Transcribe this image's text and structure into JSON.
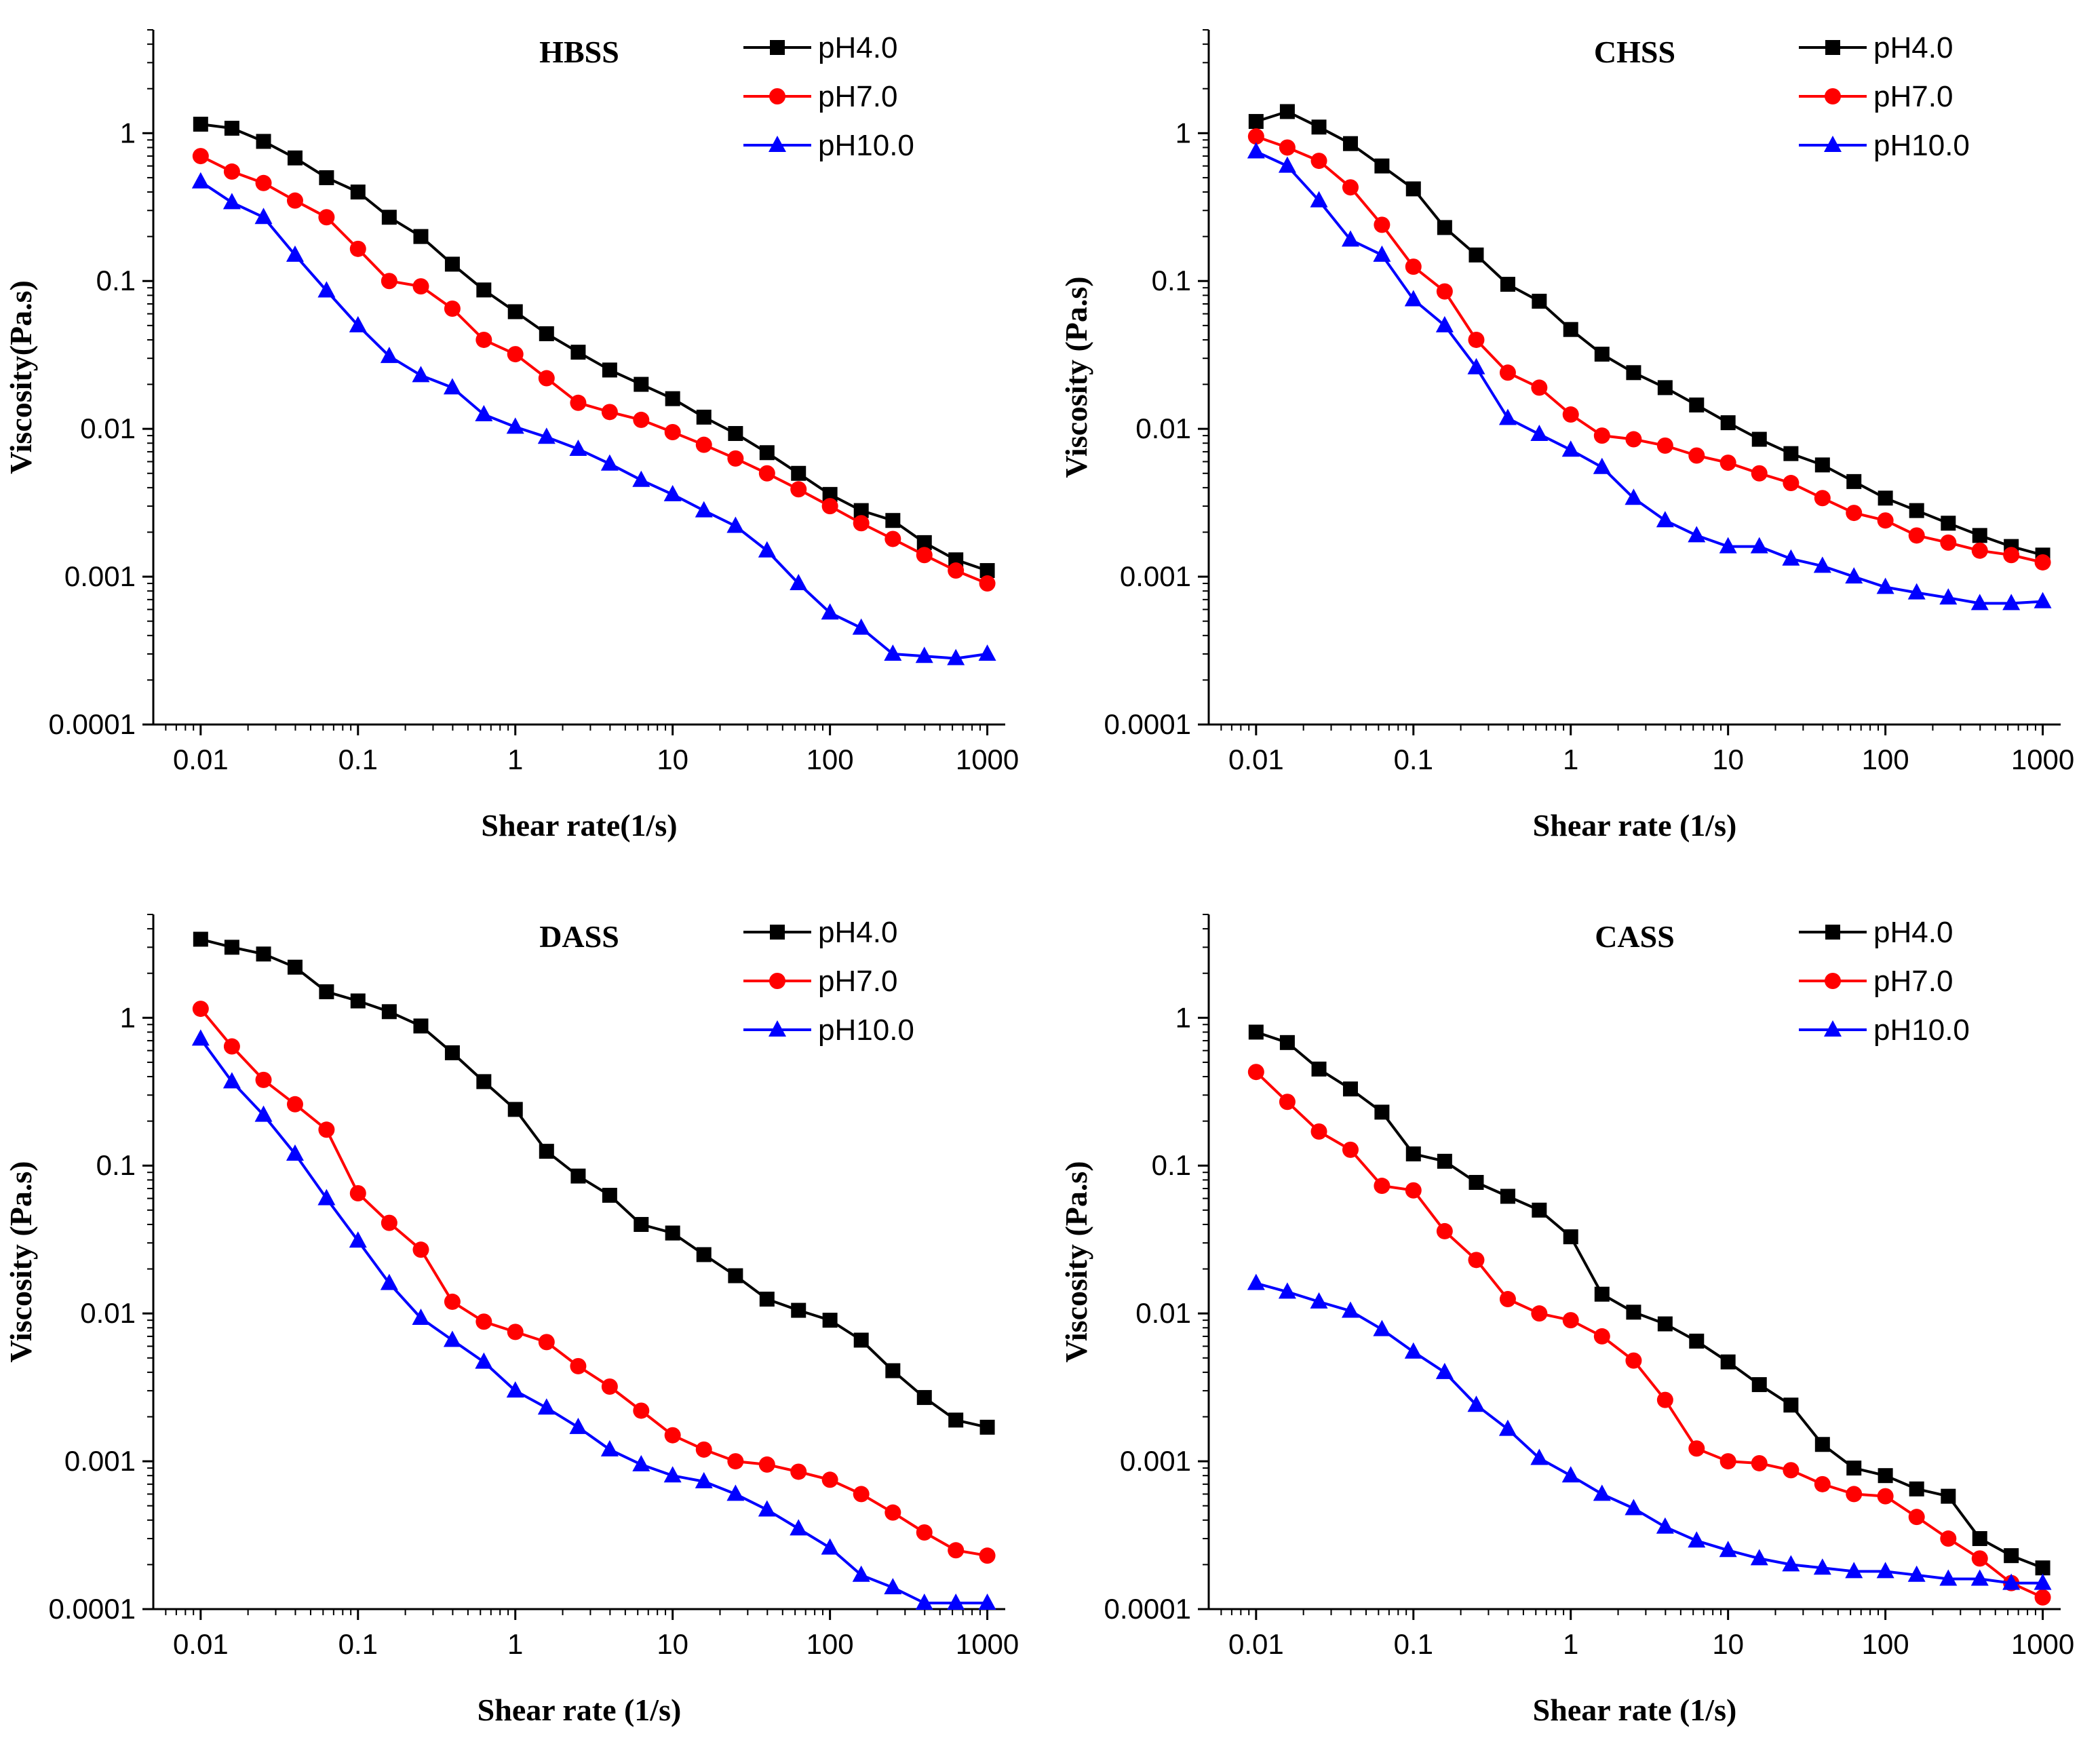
{
  "chart_data": [
    {
      "type": "line",
      "title": "HBSS",
      "xlabel": "Shear rate(1/s)",
      "ylabel": "Viscosity(Pa.s)",
      "xscale": "log",
      "yscale": "log",
      "xlim": [
        0.005,
        1300
      ],
      "ylim": [
        0.0001,
        5
      ],
      "xticks": [
        "0.01",
        "0.1",
        "1",
        "10",
        "100",
        "1000"
      ],
      "yticks": [
        "0.0001",
        "0.001",
        "0.01",
        "0.1",
        "1"
      ],
      "legend_position": "top-right",
      "x": [
        0.01,
        0.0158,
        0.0251,
        0.0398,
        0.0631,
        0.1,
        0.158,
        0.251,
        0.398,
        0.631,
        1,
        1.58,
        2.51,
        3.98,
        6.31,
        10,
        15.8,
        25.1,
        39.8,
        63.1,
        100,
        158,
        251,
        398,
        631,
        1000
      ],
      "series": [
        {
          "name": "pH4.0",
          "color": "#000000",
          "marker": "square",
          "values": [
            1.15,
            1.08,
            0.88,
            0.68,
            0.5,
            0.4,
            0.27,
            0.2,
            0.13,
            0.087,
            0.062,
            0.044,
            0.033,
            0.025,
            0.02,
            0.016,
            0.012,
            0.0093,
            0.0069,
            0.005,
            0.0036,
            0.0028,
            0.0024,
            0.0017,
            0.0013,
            0.0011
          ]
        },
        {
          "name": "pH7.0",
          "color": "#ff0000",
          "marker": "circle",
          "values": [
            0.7,
            0.55,
            0.46,
            0.35,
            0.27,
            0.165,
            0.1,
            0.092,
            0.065,
            0.04,
            0.032,
            0.022,
            0.015,
            0.013,
            0.0115,
            0.0095,
            0.0078,
            0.0063,
            0.005,
            0.0039,
            0.003,
            0.0023,
            0.0018,
            0.0014,
            0.0011,
            0.0009
          ]
        },
        {
          "name": "pH10.0",
          "color": "#0000ff",
          "marker": "triangle",
          "values": [
            0.47,
            0.34,
            0.27,
            0.15,
            0.086,
            0.05,
            0.031,
            0.023,
            0.019,
            0.0125,
            0.0103,
            0.0088,
            0.0073,
            0.0058,
            0.0045,
            0.0036,
            0.0028,
            0.0022,
            0.0015,
            0.0009,
            0.00057,
            0.00045,
            0.0003,
            0.00029,
            0.00028,
            0.0003
          ]
        }
      ]
    },
    {
      "type": "line",
      "title": "CHSS",
      "xlabel": "Shear rate (1/s)",
      "ylabel": "Viscosity (Pa.s)",
      "xscale": "log",
      "yscale": "log",
      "xlim": [
        0.005,
        1300
      ],
      "ylim": [
        0.0001,
        5
      ],
      "xticks": [
        "0.01",
        "0.1",
        "1",
        "10",
        "100",
        "1000"
      ],
      "yticks": [
        "0.0001",
        "0.001",
        "0.01",
        "0.1",
        "1"
      ],
      "legend_position": "top-right",
      "x": [
        0.01,
        0.0158,
        0.0251,
        0.0398,
        0.0631,
        0.1,
        0.158,
        0.251,
        0.398,
        0.631,
        1,
        1.58,
        2.51,
        3.98,
        6.31,
        10,
        15.8,
        25.1,
        39.8,
        63.1,
        100,
        158,
        251,
        398,
        631,
        1000
      ],
      "series": [
        {
          "name": "pH4.0",
          "color": "#000000",
          "marker": "square",
          "values": [
            1.2,
            1.4,
            1.1,
            0.85,
            0.6,
            0.42,
            0.23,
            0.15,
            0.095,
            0.073,
            0.047,
            0.032,
            0.024,
            0.019,
            0.0145,
            0.011,
            0.0085,
            0.0068,
            0.0057,
            0.0044,
            0.0034,
            0.0028,
            0.0023,
            0.0019,
            0.0016,
            0.0014
          ]
        },
        {
          "name": "pH7.0",
          "color": "#ff0000",
          "marker": "circle",
          "values": [
            0.95,
            0.8,
            0.65,
            0.43,
            0.24,
            0.125,
            0.085,
            0.04,
            0.024,
            0.019,
            0.0125,
            0.009,
            0.0085,
            0.0077,
            0.0066,
            0.0059,
            0.005,
            0.0043,
            0.0034,
            0.0027,
            0.0024,
            0.0019,
            0.0017,
            0.0015,
            0.0014,
            0.00125
          ]
        },
        {
          "name": "pH10.0",
          "color": "#0000ff",
          "marker": "triangle",
          "values": [
            0.75,
            0.6,
            0.35,
            0.19,
            0.15,
            0.075,
            0.05,
            0.026,
            0.0118,
            0.0092,
            0.0072,
            0.0055,
            0.0034,
            0.0024,
            0.0019,
            0.0016,
            0.0016,
            0.00132,
            0.00118,
            0.001,
            0.00085,
            0.00078,
            0.00072,
            0.00066,
            0.00066,
            0.00068
          ]
        }
      ]
    },
    {
      "type": "line",
      "title": "DASS",
      "xlabel": "Shear rate (1/s)",
      "ylabel": "Viscosity (Pa.s)",
      "xscale": "log",
      "yscale": "log",
      "xlim": [
        0.005,
        1300
      ],
      "ylim": [
        0.0001,
        5
      ],
      "xticks": [
        "0.01",
        "0.1",
        "1",
        "10",
        "100",
        "1000"
      ],
      "yticks": [
        "0.0001",
        "0.001",
        "0.01",
        "0.1",
        "1"
      ],
      "legend_position": "top-right",
      "x": [
        0.01,
        0.0158,
        0.0251,
        0.0398,
        0.0631,
        0.1,
        0.158,
        0.251,
        0.398,
        0.631,
        1,
        1.58,
        2.51,
        3.98,
        6.31,
        10,
        15.8,
        25.1,
        39.8,
        63.1,
        100,
        158,
        251,
        398,
        631,
        1000
      ],
      "series": [
        {
          "name": "pH4.0",
          "color": "#000000",
          "marker": "square",
          "values": [
            3.4,
            3.0,
            2.7,
            2.2,
            1.5,
            1.3,
            1.1,
            0.88,
            0.58,
            0.37,
            0.24,
            0.125,
            0.085,
            0.063,
            0.04,
            0.035,
            0.025,
            0.018,
            0.0125,
            0.0105,
            0.009,
            0.0066,
            0.0041,
            0.0027,
            0.0019,
            0.0017
          ]
        },
        {
          "name": "pH7.0",
          "color": "#ff0000",
          "marker": "circle",
          "values": [
            1.15,
            0.64,
            0.38,
            0.26,
            0.175,
            0.065,
            0.041,
            0.027,
            0.012,
            0.0088,
            0.0075,
            0.0064,
            0.0044,
            0.0032,
            0.0022,
            0.0015,
            0.0012,
            0.001,
            0.00095,
            0.00085,
            0.00075,
            0.0006,
            0.00045,
            0.00033,
            0.00025,
            0.00023
          ]
        },
        {
          "name": "pH10.0",
          "color": "#0000ff",
          "marker": "triangle",
          "values": [
            0.72,
            0.37,
            0.22,
            0.12,
            0.06,
            0.031,
            0.016,
            0.0093,
            0.0066,
            0.0047,
            0.003,
            0.0023,
            0.0017,
            0.0012,
            0.00095,
            0.0008,
            0.00073,
            0.0006,
            0.00047,
            0.00035,
            0.00026,
            0.00017,
            0.00014,
            0.00011,
            0.00011,
            0.00011
          ]
        }
      ]
    },
    {
      "type": "line",
      "title": "CASS",
      "xlabel": "Shear rate (1/s)",
      "ylabel": "Viscosity (Pa.s)",
      "xscale": "log",
      "yscale": "log",
      "xlim": [
        0.005,
        1300
      ],
      "ylim": [
        0.0001,
        5
      ],
      "xticks": [
        "0.01",
        "0.1",
        "1",
        "10",
        "100",
        "1000"
      ],
      "yticks": [
        "0.0001",
        "0.001",
        "0.01",
        "0.1",
        "1"
      ],
      "legend_position": "top-right",
      "x": [
        0.01,
        0.0158,
        0.0251,
        0.0398,
        0.0631,
        0.1,
        0.158,
        0.251,
        0.398,
        0.631,
        1,
        1.58,
        2.51,
        3.98,
        6.31,
        10,
        15.8,
        25.1,
        39.8,
        63.1,
        100,
        158,
        251,
        398,
        631,
        1000
      ],
      "series": [
        {
          "name": "pH4.0",
          "color": "#000000",
          "marker": "square",
          "values": [
            0.8,
            0.68,
            0.45,
            0.33,
            0.23,
            0.12,
            0.107,
            0.077,
            0.062,
            0.05,
            0.033,
            0.0135,
            0.0102,
            0.0085,
            0.0065,
            0.0047,
            0.0033,
            0.0024,
            0.0013,
            0.0009,
            0.0008,
            0.00065,
            0.00058,
            0.0003,
            0.00023,
            0.00019
          ]
        },
        {
          "name": "pH7.0",
          "color": "#ff0000",
          "marker": "circle",
          "values": [
            0.43,
            0.27,
            0.17,
            0.128,
            0.073,
            0.068,
            0.036,
            0.023,
            0.0125,
            0.01,
            0.009,
            0.007,
            0.0048,
            0.0026,
            0.00122,
            0.001,
            0.00097,
            0.00087,
            0.0007,
            0.0006,
            0.00058,
            0.00042,
            0.0003,
            0.00022,
            0.00015,
            0.00012
          ]
        },
        {
          "name": "pH10.0",
          "color": "#0000ff",
          "marker": "triangle",
          "values": [
            0.016,
            0.014,
            0.012,
            0.0104,
            0.0078,
            0.0055,
            0.004,
            0.0024,
            0.00165,
            0.00105,
            0.0008,
            0.0006,
            0.00048,
            0.00036,
            0.00029,
            0.00025,
            0.00022,
            0.0002,
            0.00019,
            0.00018,
            0.00018,
            0.00017,
            0.00016,
            0.00016,
            0.00015,
            0.00015
          ]
        }
      ]
    }
  ]
}
